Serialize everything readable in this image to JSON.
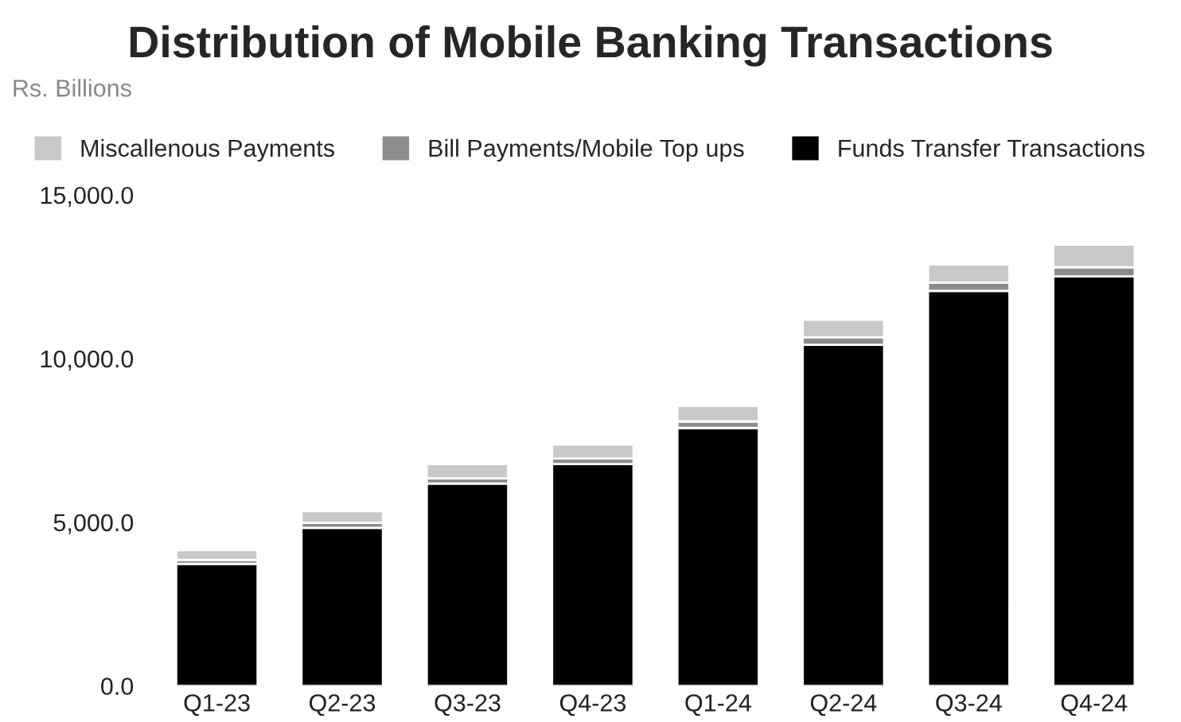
{
  "chart_data": {
    "type": "bar",
    "title": "Distribution of Mobile Banking Transactions",
    "ylabel": "Rs. Billions",
    "categories": [
      "Q1-23",
      "Q2-23",
      "Q3-23",
      "Q4-23",
      "Q1-24",
      "Q2-24",
      "Q3-24",
      "Q4-24"
    ],
    "stacked": true,
    "series": [
      {
        "name": "Funds Transfer Transactions",
        "color": "#000000",
        "values": [
          3730,
          4830,
          6180,
          6780,
          7880,
          10420,
          12070,
          12510
        ]
      },
      {
        "name": "Bill Payments/Mobile Top ups",
        "color": "#8c8c8c",
        "values": [
          120,
          150,
          160,
          170,
          200,
          230,
          250,
          280
        ]
      },
      {
        "name": "Miscallenous Payments",
        "color": "#c8c8c8",
        "values": [
          300,
          360,
          440,
          420,
          480,
          540,
          560,
          690
        ]
      }
    ],
    "ylim": [
      0,
      15000
    ],
    "yticks": [
      {
        "value": 0,
        "label": "0.0"
      },
      {
        "value": 5000,
        "label": "5,000.0"
      },
      {
        "value": 10000,
        "label": "10,000.0"
      },
      {
        "value": 15000,
        "label": "15,000.0"
      }
    ],
    "grid": false,
    "legend": "top"
  }
}
